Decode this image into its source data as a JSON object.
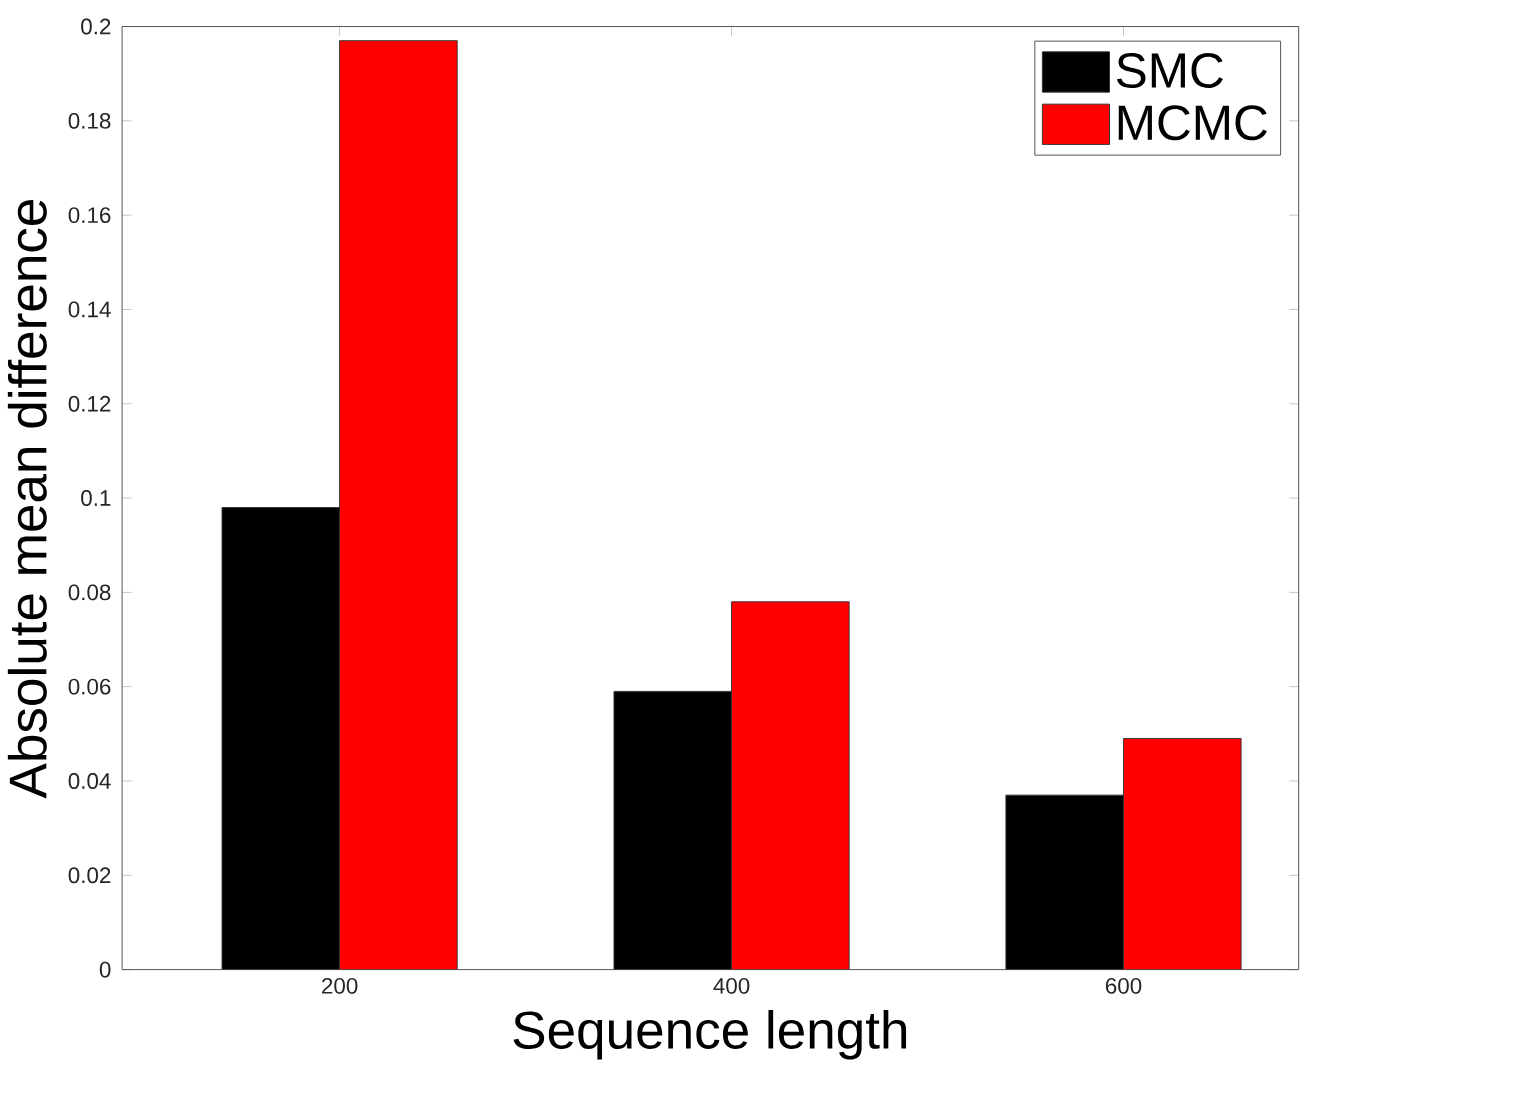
{
  "chart_data": {
    "type": "bar",
    "xlabel": "Sequence length",
    "ylabel": "Absolute mean difference",
    "categories": [
      "200",
      "400",
      "600"
    ],
    "series": [
      {
        "name": "SMC",
        "color": "#000000",
        "values": [
          0.098,
          0.059,
          0.037
        ]
      },
      {
        "name": "MCMC",
        "color": "#ff0000",
        "values": [
          0.197,
          0.078,
          0.049
        ]
      }
    ],
    "ylim": [
      0,
      0.2
    ],
    "yticks": [
      0,
      0.02,
      0.04,
      0.06,
      0.08,
      0.1,
      0.12,
      0.14,
      0.16,
      0.18,
      0.2
    ],
    "grid": false,
    "legend": "top right"
  }
}
